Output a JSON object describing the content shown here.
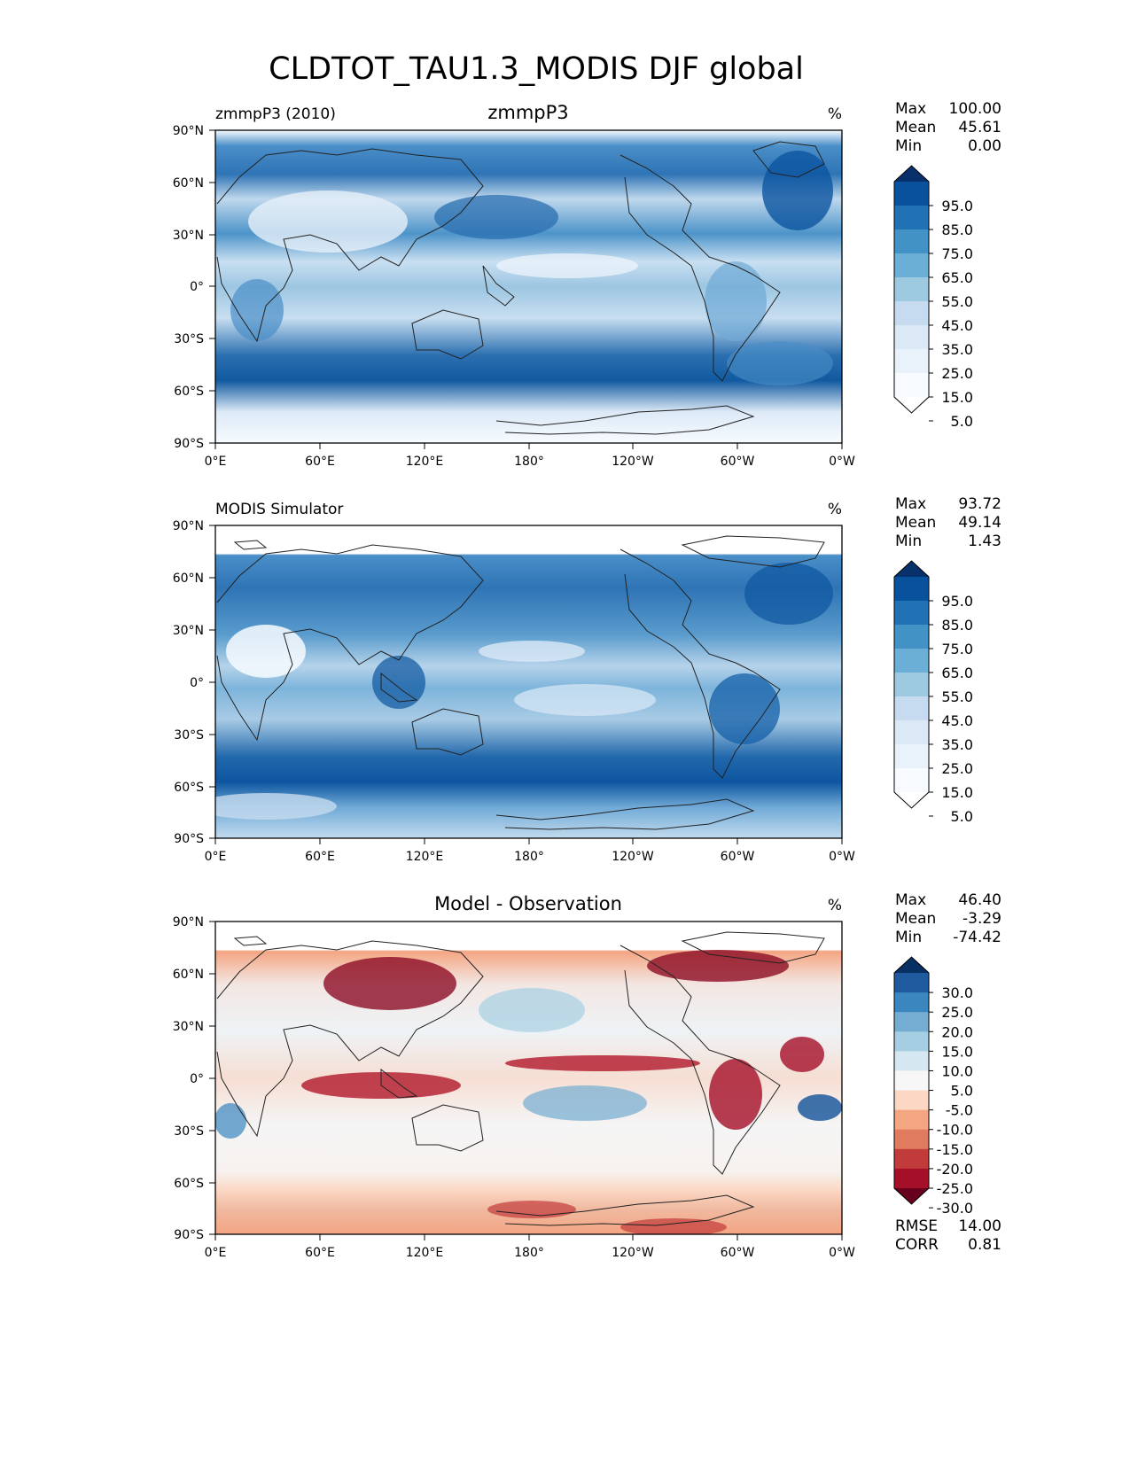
{
  "chart_data": {
    "title": "CLDTOT_TAU1.3_MODIS DJF global",
    "panels": [
      {
        "type": "heatmap",
        "left_label": "zmmpP3 (2010)",
        "center_title": "zmmpP3",
        "units": "%",
        "stats": {
          "max_label": "Max",
          "max": "100.00",
          "mean_label": "Mean",
          "mean": "45.61",
          "min_label": "Min",
          "min": "0.00"
        },
        "y_ticks": [
          "90°N",
          "60°N",
          "30°N",
          "0°",
          "30°S",
          "60°S",
          "90°S"
        ],
        "x_ticks": [
          "0°E",
          "60°E",
          "120°E",
          "180°",
          "120°W",
          "60°W",
          "0°W"
        ],
        "colorbar": {
          "labels": [
            "95.0",
            "85.0",
            "75.0",
            "65.0",
            "55.0",
            "45.0",
            "35.0",
            "25.0",
            "15.0",
            "5.0"
          ],
          "colors": [
            "#08306b",
            "#08519c",
            "#2171b5",
            "#4292c6",
            "#6baed6",
            "#9ecae1",
            "#c6dbef",
            "#dbe9f6",
            "#e9f2fb",
            "#f7fbff",
            "#ffffff"
          ]
        }
      },
      {
        "type": "heatmap",
        "left_label": "MODIS Simulator",
        "center_title": "",
        "units": "%",
        "stats": {
          "max_label": "Max",
          "max": "93.72",
          "mean_label": "Mean",
          "mean": "49.14",
          "min_label": "Min",
          "min": "1.43"
        },
        "y_ticks": [
          "90°N",
          "60°N",
          "30°N",
          "0°",
          "30°S",
          "60°S",
          "90°S"
        ],
        "x_ticks": [
          "0°E",
          "60°E",
          "120°E",
          "180°",
          "120°W",
          "60°W",
          "0°W"
        ],
        "colorbar": {
          "labels": [
            "95.0",
            "85.0",
            "75.0",
            "65.0",
            "55.0",
            "45.0",
            "35.0",
            "25.0",
            "15.0",
            "5.0"
          ],
          "colors": [
            "#08306b",
            "#08519c",
            "#2171b5",
            "#4292c6",
            "#6baed6",
            "#9ecae1",
            "#c6dbef",
            "#dbe9f6",
            "#e9f2fb",
            "#f7fbff",
            "#ffffff"
          ]
        }
      },
      {
        "type": "heatmap",
        "left_label": "",
        "center_title": "Model - Observation",
        "units": "%",
        "stats": {
          "max_label": "Max",
          "max": "46.40",
          "mean_label": "Mean",
          "mean": "-3.29",
          "min_label": "Min",
          "min": "-74.42"
        },
        "y_ticks": [
          "90°N",
          "60°N",
          "30°N",
          "0°",
          "30°S",
          "60°S",
          "90°S"
        ],
        "x_ticks": [
          "0°E",
          "60°E",
          "120°E",
          "180°",
          "120°W",
          "60°W",
          "0°W"
        ],
        "colorbar": {
          "labels": [
            "30.0",
            "25.0",
            "20.0",
            "15.0",
            "10.0",
            "5.0",
            "-5.0",
            "-10.0",
            "-15.0",
            "-20.0",
            "-25.0",
            "-30.0"
          ],
          "colors": [
            "#053061",
            "#1f5a9e",
            "#3a86bf",
            "#74add1",
            "#a6cee3",
            "#d5e7f1",
            "#f7f7f7",
            "#fbd7c4",
            "#f4a582",
            "#e07b5f",
            "#c23b3b",
            "#a50f28",
            "#67001f"
          ]
        },
        "rmse_label": "RMSE",
        "rmse": "14.00",
        "corr_label": "CORR",
        "corr": "0.81"
      }
    ]
  }
}
